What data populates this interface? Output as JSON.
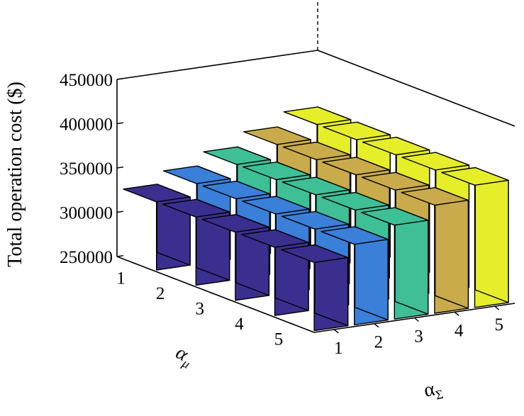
{
  "chart_data": {
    "type": "bar3d",
    "title": "",
    "zlabel": "Total operation cost ($)",
    "xlabel": "α_Σ",
    "ylabel": "α_μ",
    "xlabel_main": "α",
    "xlabel_sub": "Σ",
    "ylabel_main": "α",
    "ylabel_sub": "μ",
    "zlim": [
      250000,
      450000
    ],
    "zticks": [
      "250000",
      "300000",
      "350000",
      "400000",
      "450000"
    ],
    "x_categories": [
      "1",
      "2",
      "3",
      "4",
      "5"
    ],
    "y_categories": [
      "1",
      "2",
      "3",
      "4",
      "5"
    ],
    "series_colors": [
      "#3a2f8f",
      "#3a7fd8",
      "#3fbf96",
      "#c9ab4b",
      "#e6ee2a"
    ],
    "values": [
      [
        327000,
        341000,
        356000,
        372000,
        388000
      ],
      [
        327000,
        341000,
        356000,
        372000,
        388000
      ],
      [
        327000,
        341000,
        356000,
        372000,
        388000
      ],
      [
        327000,
        341000,
        356000,
        372000,
        388000
      ],
      [
        327000,
        341000,
        356000,
        372000,
        388000
      ]
    ]
  }
}
